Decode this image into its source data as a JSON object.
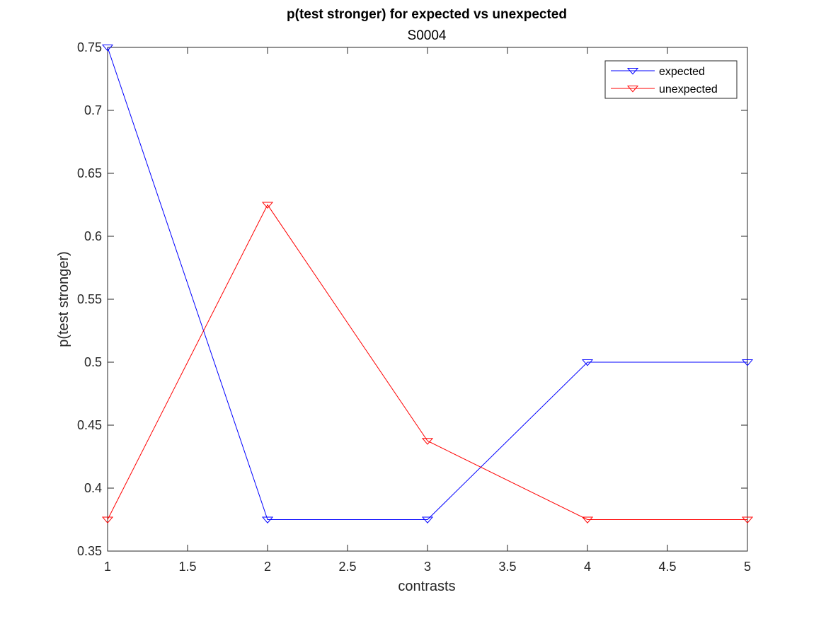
{
  "chart_data": {
    "type": "line",
    "title": "p(test stronger) for expected vs unexpected",
    "subtitle": "S0004",
    "xlabel": "contrasts",
    "ylabel": "p(test stronger)",
    "xlim": [
      1,
      5
    ],
    "ylim": [
      0.35,
      0.75
    ],
    "xticks": [
      1,
      1.5,
      2,
      2.5,
      3,
      3.5,
      4,
      4.5,
      5
    ],
    "xtick_labels": [
      "1",
      "1.5",
      "2",
      "2.5",
      "3",
      "3.5",
      "4",
      "4.5",
      "5"
    ],
    "yticks": [
      0.35,
      0.4,
      0.45,
      0.5,
      0.55,
      0.6,
      0.65,
      0.7,
      0.75
    ],
    "ytick_labels": [
      "0.35",
      "0.4",
      "0.45",
      "0.5",
      "0.55",
      "0.6",
      "0.65",
      "0.7",
      "0.75"
    ],
    "grid": false,
    "legend_position": "top-right",
    "x": [
      1,
      2,
      3,
      4,
      5
    ],
    "series": [
      {
        "name": "expected",
        "color": "#0000ff",
        "marker": "triangle-down",
        "values": [
          0.75,
          0.375,
          0.375,
          0.5,
          0.5
        ]
      },
      {
        "name": "unexpected",
        "color": "#ff0000",
        "marker": "triangle-down",
        "values": [
          0.375,
          0.625,
          0.4375,
          0.375,
          0.375
        ]
      }
    ]
  }
}
